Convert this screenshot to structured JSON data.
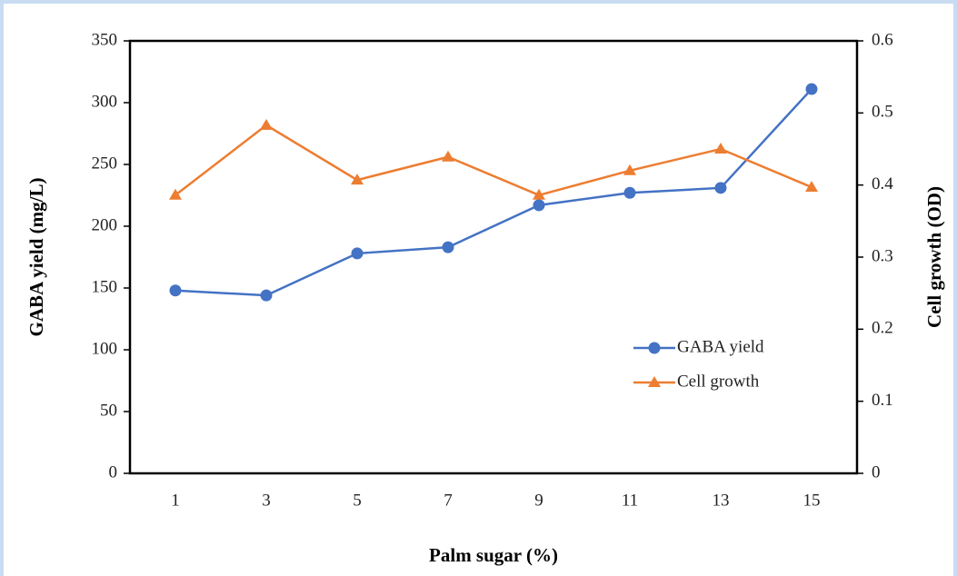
{
  "chart_data": {
    "type": "line",
    "categories": [
      "1",
      "3",
      "5",
      "7",
      "9",
      "11",
      "13",
      "15"
    ],
    "series": [
      {
        "name": "GABA yield",
        "color": "#4472c4",
        "marker": "circle",
        "axis": "y",
        "values": [
          148,
          144,
          178,
          183,
          217,
          227,
          231,
          311
        ]
      },
      {
        "name": "Cell growth",
        "color": "#ed7d31",
        "marker": "triangle",
        "axis": "y2",
        "values": [
          0.386,
          0.483,
          0.407,
          0.439,
          0.386,
          0.42,
          0.45,
          0.397
        ]
      }
    ],
    "ylim": [
      0,
      350
    ],
    "yticks": [
      0,
      50,
      100,
      150,
      200,
      250,
      300,
      350
    ],
    "y2lim": [
      0,
      0.6
    ],
    "y2ticks": [
      0,
      0.1,
      0.2,
      0.3,
      0.4,
      0.5,
      0.6
    ],
    "ylabel": "GABA yield (mg/L)",
    "y2label": "Cell growth (OD)",
    "xlabel": "Palm sugar (%)",
    "legend": "lower right"
  }
}
